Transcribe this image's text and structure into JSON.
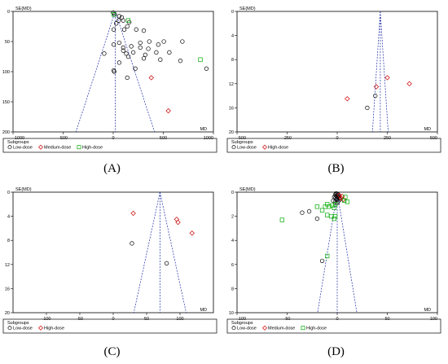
{
  "chart_data": [
    {
      "type": "scatter",
      "caption": "(A)",
      "xlabel": "MD",
      "ylabel": "SE(MD)",
      "xlim": [
        -1000,
        1000
      ],
      "ylim": [
        0,
        200
      ],
      "y_reversed": true,
      "xticks": [
        -1000,
        -500,
        0,
        500,
        1000
      ],
      "yticks": [
        0,
        50,
        100,
        150,
        200
      ],
      "xtick_labels": [
        "-1000",
        "-500",
        "0",
        "500",
        "1000"
      ],
      "ytick_labels": [
        "0",
        "50",
        "100",
        "150",
        "200"
      ],
      "pooled_md": 20,
      "funnel_se_max": 200,
      "legend_title": "Subgroups",
      "series": [
        {
          "name": "Low-dose",
          "marker": "circle",
          "color": "#000000",
          "points": [
            [
              0,
              2
            ],
            [
              15,
              5
            ],
            [
              60,
              8
            ],
            [
              85,
              10
            ],
            [
              55,
              15
            ],
            [
              100,
              15
            ],
            [
              160,
              18
            ],
            [
              30,
              20
            ],
            [
              140,
              25
            ],
            [
              5,
              30
            ],
            [
              110,
              30
            ],
            [
              230,
              30
            ],
            [
              305,
              32
            ],
            [
              360,
              50
            ],
            [
              505,
              50
            ],
            [
              690,
              50
            ],
            [
              270,
              52
            ],
            [
              450,
              55
            ],
            [
              60,
              52
            ],
            [
              5,
              55
            ],
            [
              180,
              58
            ],
            [
              100,
              60
            ],
            [
              270,
              60
            ],
            [
              350,
              62
            ],
            [
              100,
              65
            ],
            [
              200,
              68
            ],
            [
              430,
              68
            ],
            [
              560,
              68
            ],
            [
              -90,
              70
            ],
            [
              130,
              70
            ],
            [
              320,
              72
            ],
            [
              150,
              75
            ],
            [
              305,
              78
            ],
            [
              470,
              80
            ],
            [
              670,
              82
            ],
            [
              60,
              85
            ],
            [
              220,
              95
            ],
            [
              5,
              98
            ],
            [
              10,
              100
            ],
            [
              930,
              95
            ],
            [
              140,
              110
            ]
          ]
        },
        {
          "name": "Medium-dose",
          "marker": "diamond",
          "color": "#cc0000",
          "points": [
            [
              380,
              110
            ],
            [
              550,
              165
            ]
          ]
        },
        {
          "name": "High-dose",
          "marker": "square",
          "color": "#00aa00",
          "points": [
            [
              5,
              5
            ],
            [
              150,
              15
            ],
            [
              870,
              80
            ]
          ]
        }
      ]
    },
    {
      "type": "scatter",
      "caption": "(B)",
      "xlabel": "MD",
      "ylabel": "SE(MD)",
      "xlim": [
        -500,
        500
      ],
      "ylim": [
        0,
        20
      ],
      "y_reversed": true,
      "xticks": [
        -500,
        -250,
        0,
        250,
        500
      ],
      "yticks": [
        0,
        4,
        8,
        12,
        16,
        20
      ],
      "xtick_labels": [
        "-500",
        "-250",
        "0",
        "250",
        "500"
      ],
      "ytick_labels": [
        "0",
        "4",
        "8",
        "12",
        "16",
        "20"
      ],
      "pooled_md": 215,
      "funnel_se_max": 20,
      "legend_title": "Subgroups",
      "series": [
        {
          "name": "Low-dose",
          "marker": "circle",
          "color": "#000000",
          "points": [
            [
              190,
              14
            ],
            [
              150,
              16
            ]
          ]
        },
        {
          "name": "High-dose",
          "marker": "diamond",
          "color": "#cc0000",
          "points": [
            [
              195,
              12.5
            ],
            [
              250,
              11
            ],
            [
              360,
              12
            ],
            [
              50,
              14.5
            ]
          ]
        }
      ]
    },
    {
      "type": "scatter",
      "caption": "(C)",
      "xlabel": "MD",
      "ylabel": "SE(MD)",
      "xlim": [
        -150,
        150
      ],
      "ylim": [
        0,
        20
      ],
      "y_reversed": true,
      "xticks": [
        -100,
        -50,
        0,
        50,
        100
      ],
      "yticks": [
        0,
        4,
        8,
        12,
        16,
        20
      ],
      "xtick_labels": [
        "-100",
        "-50",
        "0",
        "50",
        "100"
      ],
      "ytick_labels": [
        "0",
        "4",
        "8",
        "12",
        "16",
        "20"
      ],
      "pooled_md": 70,
      "funnel_se_max": 20,
      "legend_title": "Subgroups",
      "series": [
        {
          "name": "Low-dose",
          "marker": "circle",
          "color": "#000000",
          "points": [
            [
              28,
              8.5
            ],
            [
              80,
              11.8
            ]
          ]
        },
        {
          "name": "High-dose",
          "marker": "diamond",
          "color": "#cc0000",
          "points": [
            [
              30,
              3.5
            ],
            [
              95,
              4.5
            ],
            [
              97,
              5
            ],
            [
              118,
              6.8
            ]
          ]
        }
      ]
    },
    {
      "type": "scatter",
      "caption": "(D)",
      "xlabel": "MD",
      "ylabel": "SE(MD)",
      "xlim": [
        -100,
        100
      ],
      "ylim": [
        0,
        10
      ],
      "y_reversed": true,
      "xticks": [
        -100,
        -50,
        0,
        50,
        100
      ],
      "yticks": [
        0,
        2,
        4,
        6,
        8,
        10
      ],
      "xtick_labels": [
        "-100",
        "-50",
        "0",
        "50",
        "100"
      ],
      "ytick_labels": [
        "0",
        "2",
        "4",
        "6",
        "8",
        "10"
      ],
      "pooled_md": 0,
      "funnel_se_max": 10,
      "legend_title": "Subgroups",
      "series": [
        {
          "name": "Low-dose",
          "marker": "circle",
          "color": "#000000",
          "points": [
            [
              -1,
              0.1
            ],
            [
              0,
              0.15
            ],
            [
              -2,
              0.2
            ],
            [
              1,
              0.2
            ],
            [
              -1,
              0.3
            ],
            [
              2,
              0.3
            ],
            [
              0,
              0.35
            ],
            [
              -3,
              0.4
            ],
            [
              1,
              0.4
            ],
            [
              -2,
              0.5
            ],
            [
              2,
              0.5
            ],
            [
              0,
              0.55
            ],
            [
              -1,
              0.6
            ],
            [
              3,
              0.6
            ],
            [
              -4,
              0.7
            ],
            [
              1,
              0.75
            ],
            [
              -2,
              0.8
            ],
            [
              0,
              0.9
            ],
            [
              -35,
              1.7
            ],
            [
              -28,
              1.6
            ],
            [
              -20,
              2.2
            ],
            [
              -15,
              5.7
            ]
          ]
        },
        {
          "name": "Medium-dose",
          "marker": "diamond",
          "color": "#cc0000",
          "points": [
            [
              2,
              0.25
            ],
            [
              5,
              0.35
            ],
            [
              4,
              0.5
            ],
            [
              6,
              0.6
            ]
          ]
        },
        {
          "name": "High-dose",
          "marker": "square",
          "color": "#00aa00",
          "points": [
            [
              8,
              0.4
            ],
            [
              7,
              0.7
            ],
            [
              10,
              0.8
            ],
            [
              -2,
              1.0
            ],
            [
              -10,
              1.0
            ],
            [
              -20,
              1.2
            ],
            [
              -12,
              1.2
            ],
            [
              -8,
              1.2
            ],
            [
              -5,
              1.1
            ],
            [
              -3,
              1.3
            ],
            [
              -15,
              1.5
            ],
            [
              -10,
              1.9
            ],
            [
              -6,
              2.0
            ],
            [
              -2,
              2.0
            ],
            [
              -55,
              2.3
            ],
            [
              -3,
              2.2
            ],
            [
              -10,
              5.3
            ]
          ]
        }
      ]
    }
  ]
}
